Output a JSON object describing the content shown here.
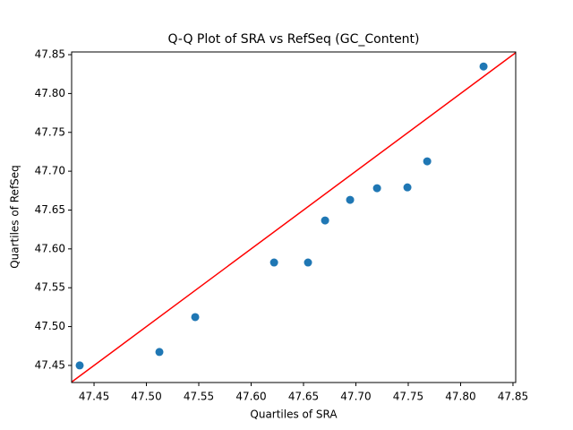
{
  "chart_data": {
    "type": "scatter",
    "title": "Q-Q Plot of SRA vs RefSeq (GC_Content)",
    "x_label": "Quartiles of SRA",
    "y_label": "Quartiles of RefSeq",
    "x": [
      47.4363,
      47.5124,
      47.5466,
      47.6219,
      47.6543,
      47.6706,
      47.6945,
      47.7202,
      47.7492,
      47.7681,
      47.8219
    ],
    "values": [
      47.45,
      47.4673,
      47.5122,
      47.5825,
      47.5825,
      47.6366,
      47.6631,
      47.6781,
      47.6792,
      47.7127,
      47.8348
    ],
    "color": "#1f77b4",
    "line_color": "#ff0000",
    "xlim": [
      47.4286,
      47.8526
    ],
    "ylim": [
      47.428,
      47.8535
    ],
    "xticks": [
      47.45,
      {
        "value": 47.5,
        "label": "47.50"
      },
      47.55,
      {
        "value": 47.6,
        "label": "47.60"
      },
      47.65,
      {
        "value": 47.7,
        "label": "47.70"
      },
      47.75,
      {
        "value": 47.8,
        "label": "47.80"
      },
      47.85
    ],
    "yticks": [
      47.45,
      {
        "value": 47.5,
        "label": "47.50"
      },
      47.55,
      {
        "value": 47.6,
        "label": "47.60"
      },
      47.65,
      {
        "value": 47.7,
        "label": "47.70"
      },
      47.75,
      {
        "value": 47.8,
        "label": "47.80"
      },
      47.85
    ]
  }
}
